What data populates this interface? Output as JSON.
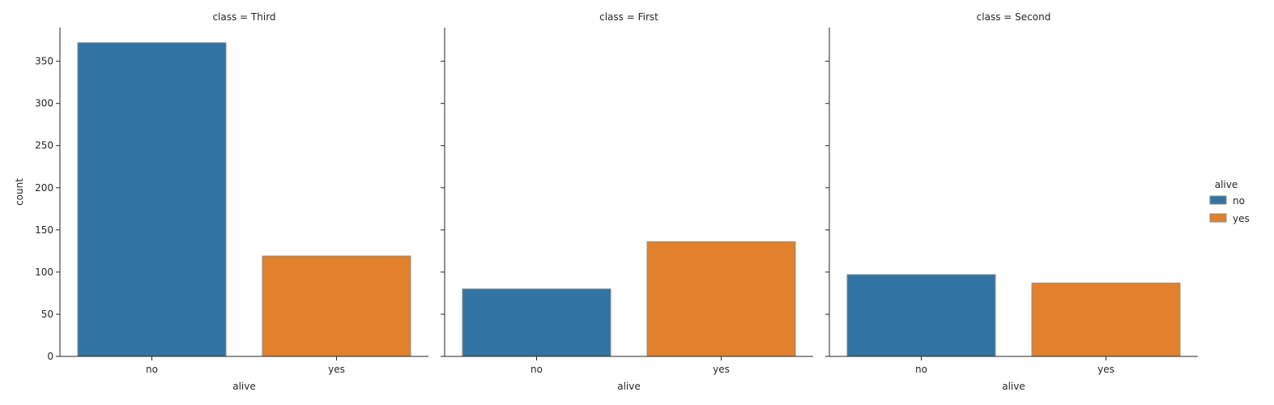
{
  "chart_data": {
    "type": "bar",
    "facet_variable": "class",
    "facets": [
      {
        "title": "class = Third",
        "categories": [
          "no",
          "yes"
        ],
        "values": [
          372,
          119
        ]
      },
      {
        "title": "class = First",
        "categories": [
          "no",
          "yes"
        ],
        "values": [
          80,
          136
        ]
      },
      {
        "title": "class = Second",
        "categories": [
          "no",
          "yes"
        ],
        "values": [
          97,
          87
        ]
      }
    ],
    "xlabel": "alive",
    "ylabel": "count",
    "ylim": [
      0,
      390
    ],
    "yticks": [
      0,
      50,
      100,
      150,
      200,
      250,
      300,
      350
    ],
    "legend": {
      "title": "alive",
      "placement": "right",
      "entries": [
        {
          "label": "no",
          "color": "#3274a1"
        },
        {
          "label": "yes",
          "color": "#e1812c"
        }
      ]
    },
    "grid": false
  }
}
